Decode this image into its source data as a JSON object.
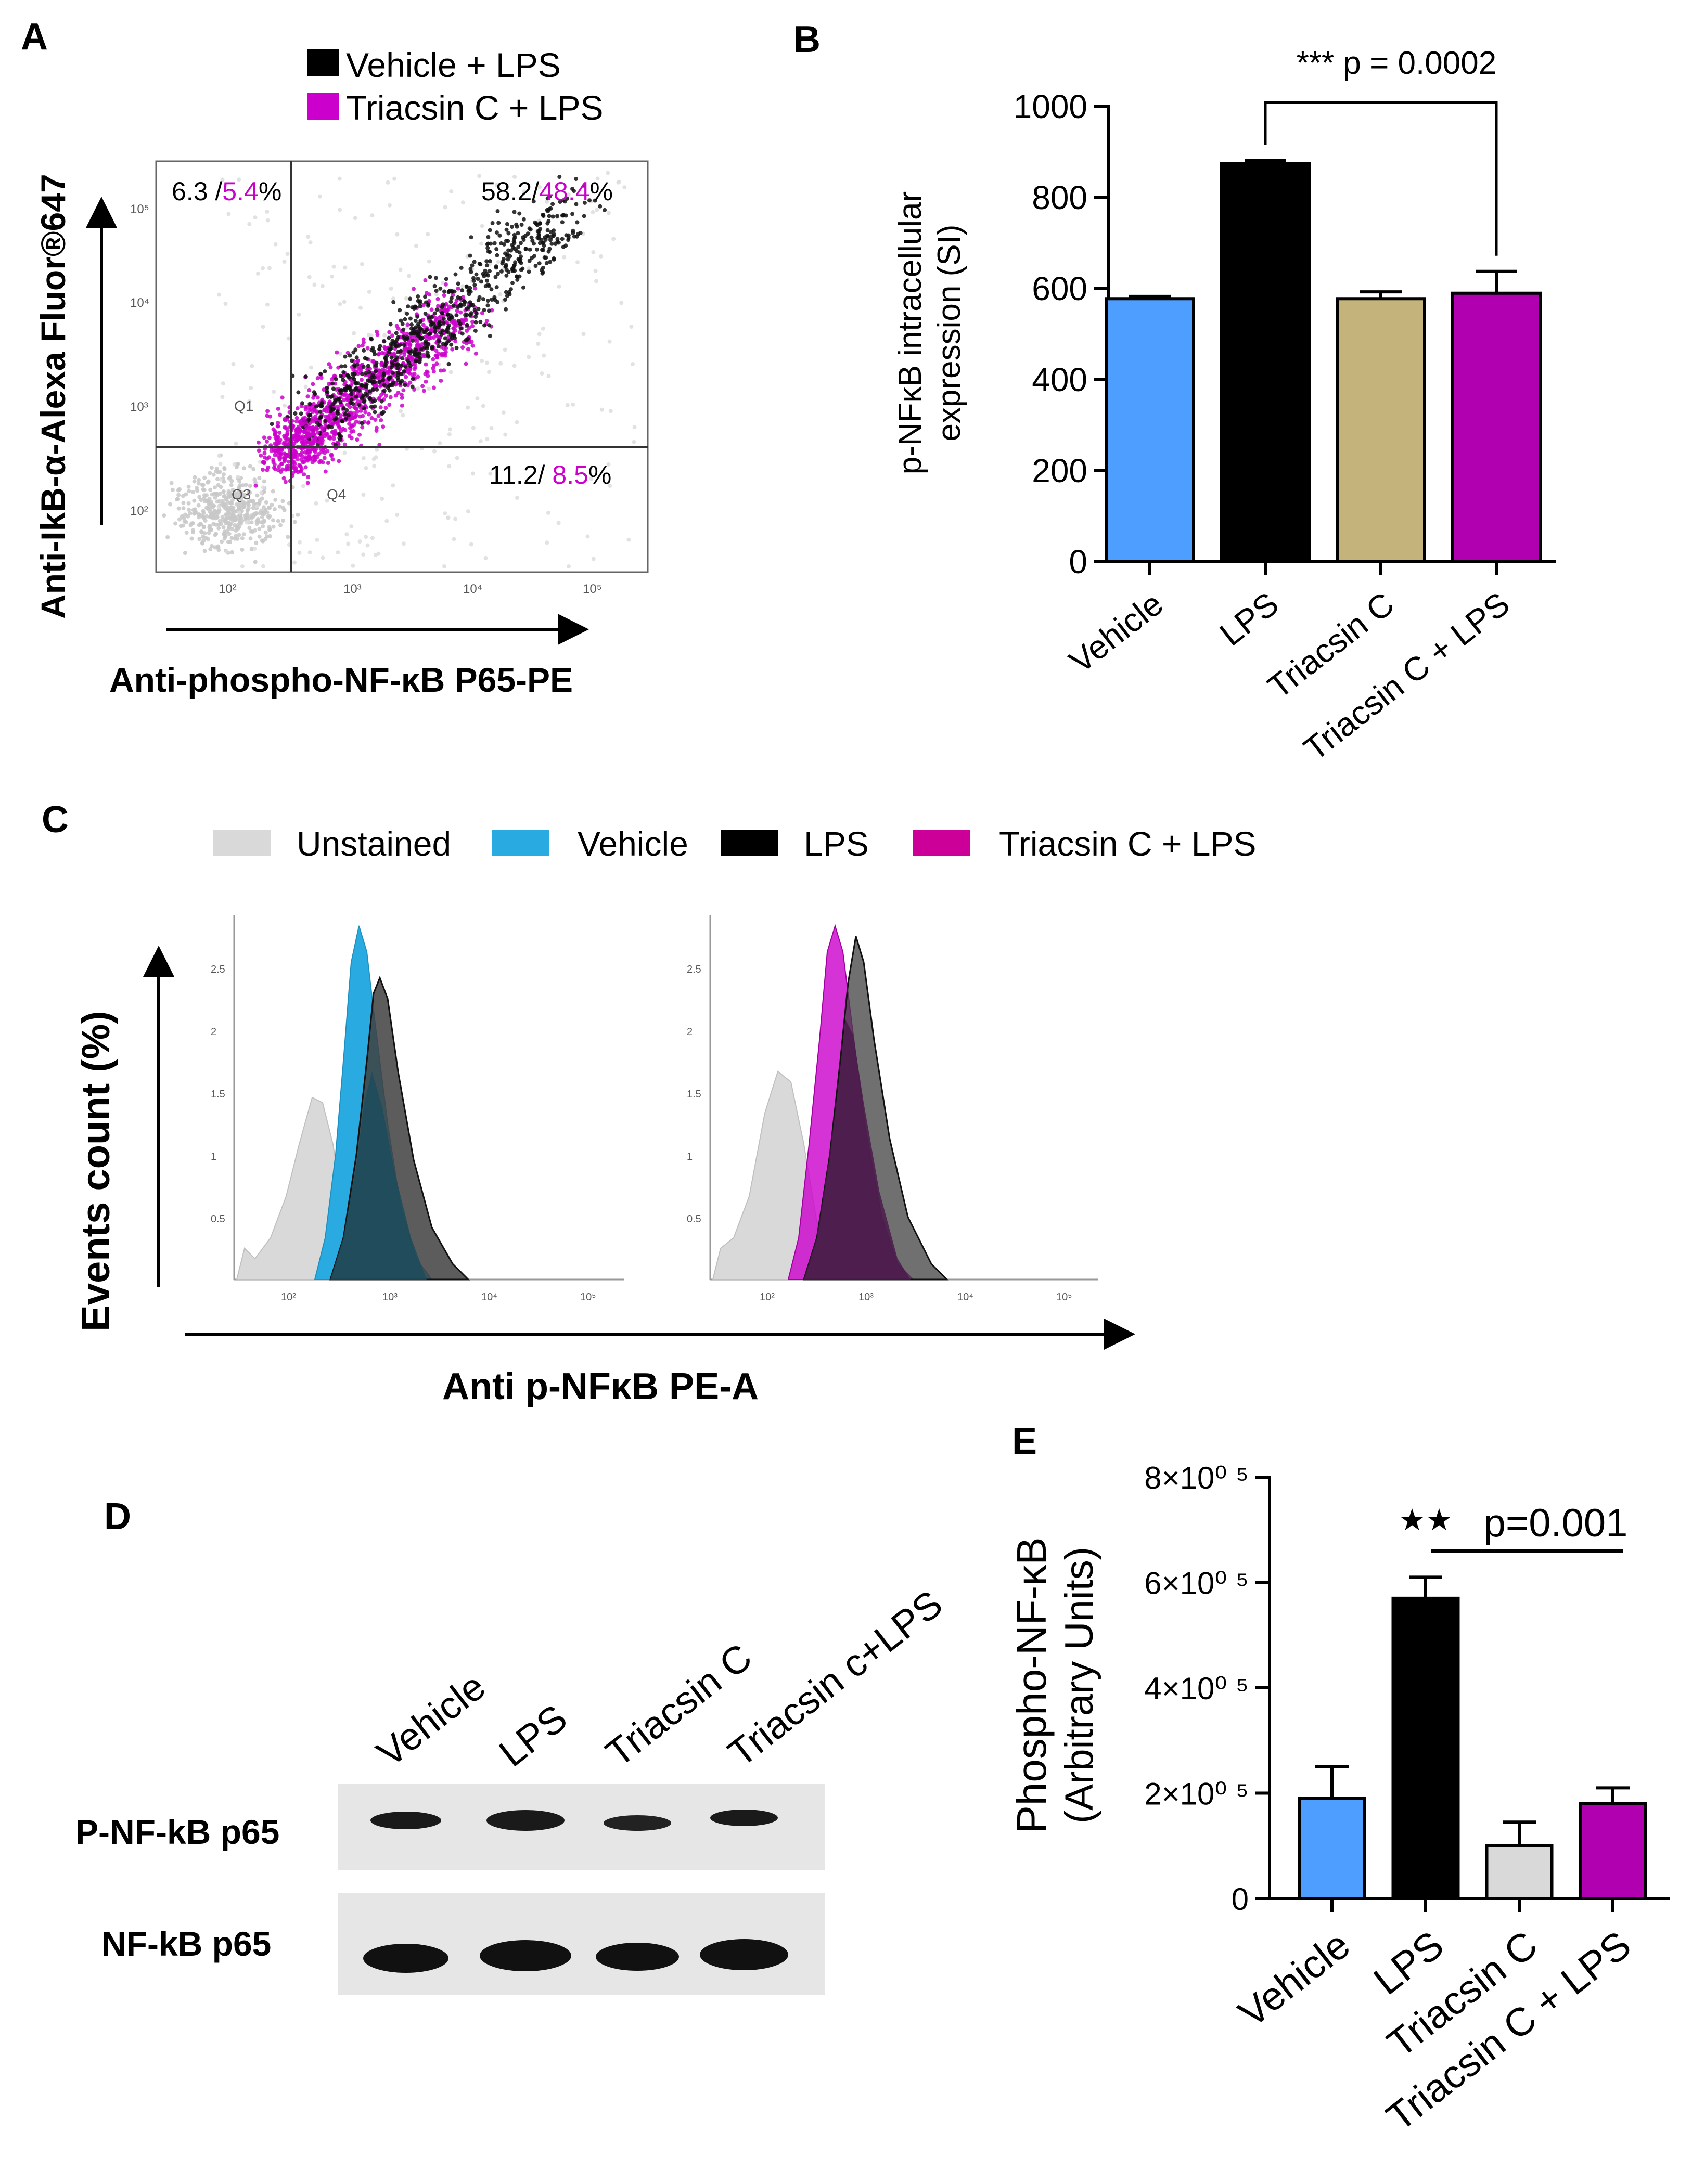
{
  "panels": {
    "A": {
      "label": "A",
      "legend": [
        {
          "name": "Vehicle + LPS",
          "color": "#000000"
        },
        {
          "name": "Triacsin C + LPS",
          "color": "#cc00cc"
        }
      ],
      "xlabel": "Anti-phospho-NF-κB  P65-PE",
      "ylabel": "Anti-IkB-α-Alexa  Fluor®647",
      "quadrants": {
        "upper_left": {
          "black": "6.3 /",
          "magenta": "5.4",
          "suffix": "%"
        },
        "upper_right": {
          "black": "58.2/",
          "magenta": "48.4",
          "suffix": "%"
        },
        "lower_right": {
          "black": "11.2/ ",
          "magenta": "8.5",
          "suffix": "%"
        }
      },
      "gate_labels": [
        "Q1",
        "Q3",
        "Q4"
      ],
      "x_ticks": [
        "10²",
        "10³",
        "10⁴",
        "10⁵"
      ],
      "y_ticks": [
        "10⁵",
        "10⁴",
        "10³",
        "10²"
      ]
    },
    "C": {
      "label": "C",
      "legend": [
        {
          "name": "Unstained",
          "color": "#d9d9d9"
        },
        {
          "name": "Vehicle",
          "color": "#29abe2"
        },
        {
          "name": "LPS",
          "color": "#000000"
        },
        {
          "name": "Triacsin C + LPS",
          "color": "#cc0099"
        }
      ],
      "ylabel": "Events count (%)",
      "xlabel": "Anti  p-NFκB  PE-A",
      "x_ticks": [
        "10²",
        "10³",
        "10⁴",
        "10⁵"
      ],
      "y_ticks": [
        "2.5",
        "2",
        "1.5",
        "1",
        "0.5"
      ]
    },
    "D": {
      "label": "D",
      "lanes": [
        "Vehicle",
        "LPS",
        "Triacsin C",
        "Triacsin c+LPS"
      ],
      "rows": [
        "P-NF-kB  p65",
        "NF-kB  p65"
      ]
    }
  },
  "chart_data": [
    {
      "panel": "B",
      "label": "B",
      "type": "bar",
      "categories": [
        "Vehicle",
        "LPS",
        "Triacsin C",
        "Triacsin C + LPS"
      ],
      "values": [
        578,
        875,
        578,
        590
      ],
      "errors": [
        5,
        7,
        15,
        48
      ],
      "colors": [
        "#4d9eff",
        "#000000",
        "#c4b47c",
        "#b000b0"
      ],
      "ylabel_line1": "p-NFκB intracellular",
      "ylabel_line2": "expression (SI)",
      "ylim": [
        0,
        1000
      ],
      "yticks": [
        0,
        200,
        400,
        600,
        800,
        1000
      ],
      "annotation": "*** p = 0.0002",
      "compare": [
        1,
        3
      ]
    },
    {
      "panel": "E",
      "label": "E",
      "type": "bar",
      "categories": [
        "Vehicle",
        "LPS",
        "Triacsin C",
        "Triacsin C + LPS"
      ],
      "values": [
        190000,
        570000,
        100000,
        180000
      ],
      "errors": [
        60000,
        40000,
        45000,
        30000
      ],
      "colors": [
        "#4d9eff",
        "#000000",
        "#d9d9d9",
        "#b000b0"
      ],
      "ylabel_line1": "Phospho-NF-κB",
      "ylabel_line2": "(Arbitrary Units)",
      "ylim": [
        0,
        800000
      ],
      "yticks": [
        0,
        200000,
        400000,
        600000,
        800000
      ],
      "ytick_labels": [
        "0",
        "2×10⁰ ⁵",
        "4×10⁰ ⁵",
        "6×10⁰ ⁵",
        "8×10⁰ ⁵"
      ],
      "annotation_stars": "★★",
      "annotation": "p=0.001",
      "compare": [
        1,
        3
      ]
    }
  ]
}
